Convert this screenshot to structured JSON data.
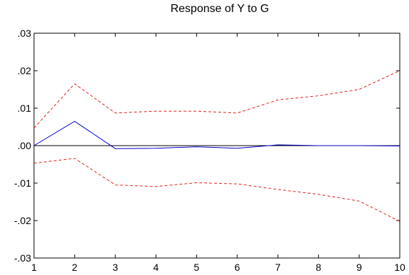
{
  "chart_data": {
    "type": "line",
    "title": "Response of Y to G",
    "xlabel": "",
    "ylabel": "",
    "x": [
      1,
      2,
      3,
      4,
      5,
      6,
      7,
      8,
      9,
      10
    ],
    "x_tick_labels": [
      "1",
      "2",
      "3",
      "4",
      "5",
      "6",
      "7",
      "8",
      "9",
      "10"
    ],
    "y_ticks": [
      0.03,
      0.02,
      0.01,
      0.0,
      -0.01,
      -0.02,
      -0.03
    ],
    "y_tick_labels": [
      ".03",
      ".02",
      ".01",
      ".00",
      "-.01",
      "-.02",
      "-.03"
    ],
    "ylim": [
      -0.03,
      0.03
    ],
    "xlim": [
      1,
      10
    ],
    "grid": false,
    "zero_line": true,
    "series": [
      {
        "role": "response",
        "color": "#0000cc",
        "style": "solid",
        "values": [
          0.0,
          0.0065,
          -0.0008,
          -0.0007,
          -0.0003,
          -0.0007,
          0.0002,
          0.0,
          0.0,
          -0.0001
        ]
      },
      {
        "role": "upper-band",
        "color": "#e8201f",
        "style": "dashed",
        "values": [
          0.0047,
          0.0165,
          0.0087,
          0.0092,
          0.0092,
          0.0087,
          0.0122,
          0.0133,
          0.015,
          0.02
        ]
      },
      {
        "role": "lower-band",
        "color": "#e8201f",
        "style": "dashed",
        "values": [
          -0.0047,
          -0.0034,
          -0.0105,
          -0.0109,
          -0.0099,
          -0.0102,
          -0.0117,
          -0.013,
          -0.0148,
          -0.0202
        ]
      }
    ]
  }
}
